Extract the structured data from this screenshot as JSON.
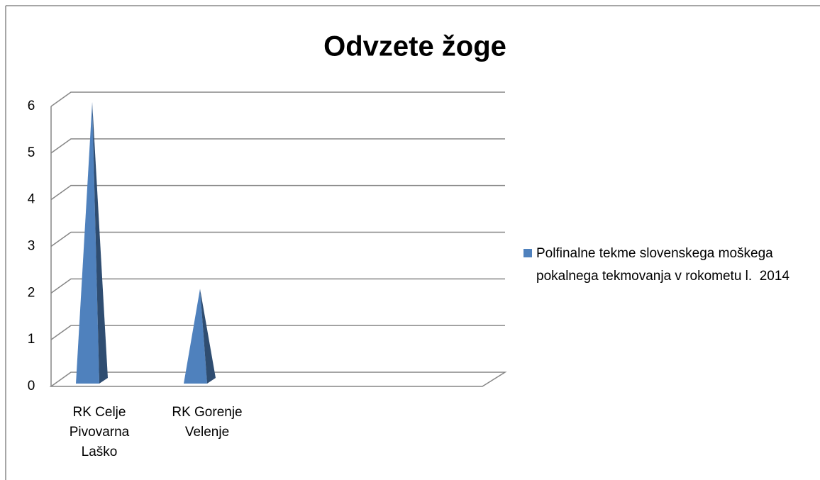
{
  "chart_data": {
    "type": "bar",
    "title": "Odvzete žoge",
    "categories": [
      "RK Celje Pivovarna Laško",
      "RK Gorenje Velenje",
      null,
      null
    ],
    "series": [
      {
        "name": "Polfinalne tekme slovenskega moškega pokalnega tekmovanja v rokometu l.  2014",
        "color": "#4f81bd",
        "values": [
          6,
          2,
          null,
          null
        ]
      }
    ],
    "ylim": [
      0,
      6
    ],
    "yticks": [
      0,
      1,
      2,
      3,
      4,
      5,
      6
    ],
    "grid": true,
    "legend": "right"
  }
}
